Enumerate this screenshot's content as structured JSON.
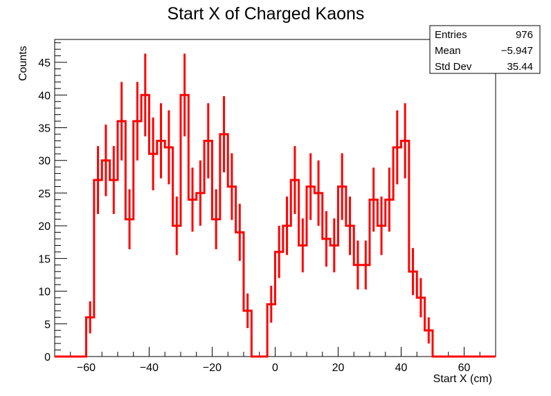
{
  "chart_data": {
    "type": "histogram",
    "title": "Start X of Charged Kaons",
    "xlabel": "Start X (cm)",
    "ylabel": "Counts",
    "xlim": [
      -70,
      70
    ],
    "ylim": [
      0,
      48.5
    ],
    "bin_width": 2.5,
    "x_ticks": [
      -60,
      -40,
      -20,
      0,
      20,
      40,
      60
    ],
    "x_tick_labels": [
      "−60",
      "−40",
      "−20",
      "0",
      "20",
      "40",
      "60"
    ],
    "y_ticks": [
      0,
      5,
      10,
      15,
      20,
      25,
      30,
      35,
      40,
      45
    ],
    "y_tick_labels": [
      "0",
      "5",
      "10",
      "15",
      "20",
      "25",
      "30",
      "35",
      "40",
      "45"
    ],
    "line_color": "#ff0000",
    "bins": [
      {
        "x0": -62.5,
        "x1": -60.0,
        "count": 0
      },
      {
        "x0": -60.0,
        "x1": -57.5,
        "count": 6
      },
      {
        "x0": -57.5,
        "x1": -55.0,
        "count": 27
      },
      {
        "x0": -55.0,
        "x1": -52.5,
        "count": 30
      },
      {
        "x0": -52.5,
        "x1": -50.0,
        "count": 27
      },
      {
        "x0": -50.0,
        "x1": -47.5,
        "count": 36
      },
      {
        "x0": -47.5,
        "x1": -45.0,
        "count": 21
      },
      {
        "x0": -45.0,
        "x1": -42.5,
        "count": 36
      },
      {
        "x0": -42.5,
        "x1": -40.0,
        "count": 40
      },
      {
        "x0": -40.0,
        "x1": -37.5,
        "count": 31
      },
      {
        "x0": -37.5,
        "x1": -35.0,
        "count": 33
      },
      {
        "x0": -35.0,
        "x1": -32.5,
        "count": 32
      },
      {
        "x0": -32.5,
        "x1": -30.0,
        "count": 20
      },
      {
        "x0": -30.0,
        "x1": -27.5,
        "count": 40
      },
      {
        "x0": -27.5,
        "x1": -25.0,
        "count": 24
      },
      {
        "x0": -25.0,
        "x1": -22.5,
        "count": 25
      },
      {
        "x0": -22.5,
        "x1": -20.0,
        "count": 33
      },
      {
        "x0": -20.0,
        "x1": -17.5,
        "count": 21
      },
      {
        "x0": -17.5,
        "x1": -15.0,
        "count": 34
      },
      {
        "x0": -15.0,
        "x1": -12.5,
        "count": 26
      },
      {
        "x0": -12.5,
        "x1": -10.0,
        "count": 19
      },
      {
        "x0": -10.0,
        "x1": -7.5,
        "count": 7
      },
      {
        "x0": -7.5,
        "x1": -5.0,
        "count": 0
      },
      {
        "x0": -5.0,
        "x1": -2.5,
        "count": 0
      },
      {
        "x0": -2.5,
        "x1": 0.0,
        "count": 8
      },
      {
        "x0": 0.0,
        "x1": 2.5,
        "count": 16
      },
      {
        "x0": 2.5,
        "x1": 5.0,
        "count": 20
      },
      {
        "x0": 5.0,
        "x1": 7.5,
        "count": 27
      },
      {
        "x0": 7.5,
        "x1": 10.0,
        "count": 17
      },
      {
        "x0": 10.0,
        "x1": 12.5,
        "count": 26
      },
      {
        "x0": 12.5,
        "x1": 15.0,
        "count": 25
      },
      {
        "x0": 15.0,
        "x1": 17.5,
        "count": 18
      },
      {
        "x0": 17.5,
        "x1": 20.0,
        "count": 17
      },
      {
        "x0": 20.0,
        "x1": 22.5,
        "count": 26
      },
      {
        "x0": 22.5,
        "x1": 25.0,
        "count": 20
      },
      {
        "x0": 25.0,
        "x1": 27.5,
        "count": 14
      },
      {
        "x0": 27.5,
        "x1": 30.0,
        "count": 14
      },
      {
        "x0": 30.0,
        "x1": 32.5,
        "count": 24
      },
      {
        "x0": 32.5,
        "x1": 35.0,
        "count": 20
      },
      {
        "x0": 35.0,
        "x1": 37.5,
        "count": 24
      },
      {
        "x0": 37.5,
        "x1": 40.0,
        "count": 32
      },
      {
        "x0": 40.0,
        "x1": 42.5,
        "count": 33
      },
      {
        "x0": 42.5,
        "x1": 45.0,
        "count": 13
      },
      {
        "x0": 45.0,
        "x1": 47.5,
        "count": 9
      },
      {
        "x0": 47.5,
        "x1": 50.0,
        "count": 4
      },
      {
        "x0": 50.0,
        "x1": 52.5,
        "count": 0
      }
    ],
    "stats": [
      {
        "label": "Entries",
        "value": "976"
      },
      {
        "label": "Mean",
        "value": "−5.947"
      },
      {
        "label": "Std Dev",
        "value": "35.44"
      }
    ]
  }
}
